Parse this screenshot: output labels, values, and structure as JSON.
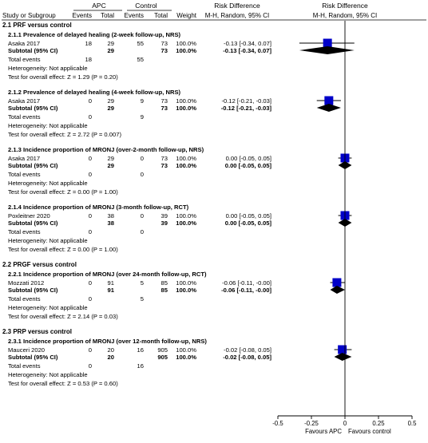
{
  "chart_data": {
    "type": "forest",
    "columns": {
      "group1": "APC",
      "group2": "Control",
      "study": "Study or Subgroup",
      "events": "Events",
      "total": "Total",
      "weight": "Weight",
      "effect_header_1": "Risk Difference",
      "effect_header_2": "M-H, Random, 95% CI",
      "plot_header_1": "Risk Difference",
      "plot_header_2": "M-H, Random, 95% CI"
    },
    "axis": {
      "min": -0.5,
      "max": 0.5,
      "ticks": [
        -0.5,
        -0.25,
        0,
        0.25,
        0.5
      ],
      "tick_labels": [
        "-0.5",
        "-0.25",
        "0",
        "0.25",
        "0.5"
      ],
      "favours_left": "Favours APC",
      "favours_right": "Favours control"
    },
    "groups": [
      {
        "title": "2.1 PRF versus control",
        "subgroups": [
          {
            "title": "2.1.1 Prevalence of delayed healing (2-week follow-up, NRS)",
            "study": {
              "name": "Asaka 2017",
              "e1": "18",
              "n1": "29",
              "e2": "55",
              "n2": "73",
              "weight": "100.0%",
              "ci": "-0.13 [-0.34, 0.07]",
              "est": -0.13,
              "lo": -0.34,
              "hi": 0.07
            },
            "subtotal": {
              "label": "Subtotal (95% CI)",
              "n1": "29",
              "n2": "73",
              "weight": "100.0%",
              "ci": "-0.13 [-0.34, 0.07]",
              "est": -0.13,
              "lo": -0.34,
              "hi": 0.07
            },
            "total_events": {
              "label": "Total events",
              "e1": "18",
              "e2": "55"
            },
            "heterogeneity": "Heterogeneity: Not applicable",
            "overall": "Test for overall effect: Z = 1.29 (P = 0.20)"
          },
          {
            "title": "2.1.2 Prevalence of delayed healing (4-week follow-up, NRS)",
            "study": {
              "name": "Asaka 2017",
              "e1": "0",
              "n1": "29",
              "e2": "9",
              "n2": "73",
              "weight": "100.0%",
              "ci": "-0.12 [-0.21, -0.03]",
              "est": -0.12,
              "lo": -0.21,
              "hi": -0.03
            },
            "subtotal": {
              "label": "Subtotal (95% CI)",
              "n1": "29",
              "n2": "73",
              "weight": "100.0%",
              "ci": "-0.12 [-0.21, -0.03]",
              "est": -0.12,
              "lo": -0.21,
              "hi": -0.03
            },
            "total_events": {
              "label": "Total events",
              "e1": "0",
              "e2": "9"
            },
            "heterogeneity": "Heterogeneity: Not applicable",
            "overall": "Test for overall effect: Z = 2.72 (P = 0.007)"
          },
          {
            "title": "2.1.3 Incidence proportion of MRONJ (over-2-month follow-up, NRS)",
            "study": {
              "name": "Asaka 2017",
              "e1": "0",
              "n1": "29",
              "e2": "0",
              "n2": "73",
              "weight": "100.0%",
              "ci": "0.00 [-0.05, 0.05]",
              "est": 0.0,
              "lo": -0.05,
              "hi": 0.05
            },
            "subtotal": {
              "label": "Subtotal (95% CI)",
              "n1": "29",
              "n2": "73",
              "weight": "100.0%",
              "ci": "0.00 [-0.05, 0.05]",
              "est": 0.0,
              "lo": -0.05,
              "hi": 0.05
            },
            "total_events": {
              "label": "Total events",
              "e1": "0",
              "e2": "0"
            },
            "heterogeneity": "Heterogeneity: Not applicable",
            "overall": "Test for overall effect: Z = 0.00 (P = 1.00)"
          },
          {
            "title": "2.1.4 Incidence proportion of MRONJ (3-month follow-up, RCT)",
            "study": {
              "name": "Poxleitner 2020",
              "e1": "0",
              "n1": "38",
              "e2": "0",
              "n2": "39",
              "weight": "100.0%",
              "ci": "0.00 [-0.05, 0.05]",
              "est": 0.0,
              "lo": -0.05,
              "hi": 0.05
            },
            "subtotal": {
              "label": "Subtotal (95% CI)",
              "n1": "38",
              "n2": "39",
              "weight": "100.0%",
              "ci": "0.00 [-0.05, 0.05]",
              "est": 0.0,
              "lo": -0.05,
              "hi": 0.05
            },
            "total_events": {
              "label": "Total events",
              "e1": "0",
              "e2": "0"
            },
            "heterogeneity": "Heterogeneity: Not applicable",
            "overall": "Test for overall effect: Z = 0.00 (P = 1.00)"
          }
        ]
      },
      {
        "title": "2.2 PRGF versus control",
        "subgroups": [
          {
            "title": "2.2.1 Incidence proportion of MRONJ (over 24-month follow-up, RCT)",
            "study": {
              "name": "Mozzati 2012",
              "e1": "0",
              "n1": "91",
              "e2": "5",
              "n2": "85",
              "weight": "100.0%",
              "ci": "-0.06 [-0.11, -0.00]",
              "est": -0.06,
              "lo": -0.11,
              "hi": -0.0
            },
            "subtotal": {
              "label": "Subtotal (95% CI)",
              "n1": "91",
              "n2": "85",
              "weight": "100.0%",
              "ci": "-0.06 [-0.11, -0.00]",
              "est": -0.06,
              "lo": -0.11,
              "hi": -0.0
            },
            "total_events": {
              "label": "Total events",
              "e1": "0",
              "e2": "5"
            },
            "heterogeneity": "Heterogeneity: Not applicable",
            "overall": "Test for overall effect: Z = 2.14 (P = 0.03)"
          }
        ]
      },
      {
        "title": "2.3 PRP versus control",
        "subgroups": [
          {
            "title": "2.3.1 Incidence proportion of MRONJ (over 12-month follow-up, NRS)",
            "study": {
              "name": "Mauceri 2020",
              "e1": "0",
              "n1": "20",
              "e2": "16",
              "n2": "905",
              "weight": "100.0%",
              "ci": "-0.02 [-0.08, 0.05]",
              "est": -0.02,
              "lo": -0.08,
              "hi": 0.05
            },
            "subtotal": {
              "label": "Subtotal (95% CI)",
              "n1": "20",
              "n2": "905",
              "weight": "100.0%",
              "ci": "-0.02 [-0.08, 0.05]",
              "est": -0.02,
              "lo": -0.08,
              "hi": 0.05
            },
            "total_events": {
              "label": "Total events",
              "e1": "0",
              "e2": "16"
            },
            "heterogeneity": "Heterogeneity: Not applicable",
            "overall": "Test for overall effect: Z = 0.53 (P = 0.60)"
          }
        ]
      }
    ],
    "colors": {
      "study_marker": "#0000c8",
      "diamond": "#000000",
      "lines": "#000000"
    }
  }
}
